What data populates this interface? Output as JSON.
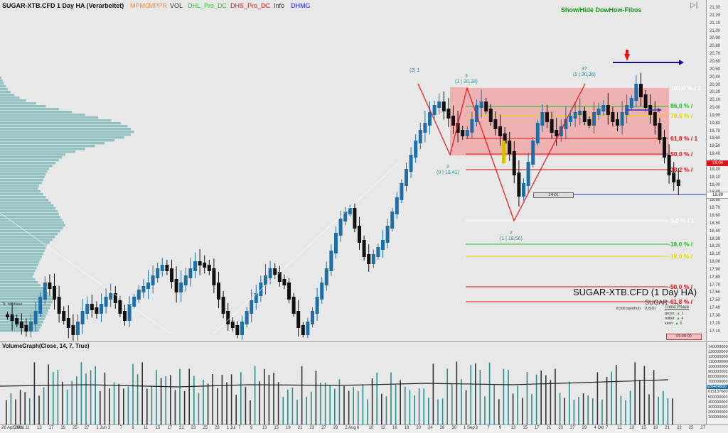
{
  "header": {
    "title": "SUGAR-XTB.CFD 1 Day HA (Verarbeitet)",
    "indicators": [
      {
        "label": "MPMG",
        "color": "#ff8c1a"
      },
      {
        "label": "MPPR",
        "color": "#ff8c1a"
      },
      {
        "label": "VOL",
        "color": "#333333"
      },
      {
        "label": "DHL_Pro_DC",
        "color": "#22cc22"
      },
      {
        "label": "DHS_Pro_DC",
        "color": "#dd1111"
      },
      {
        "label": "Info",
        "color": "#333333"
      },
      {
        "label": "DHMG",
        "color": "#1a1aff"
      }
    ],
    "show_hide_label": "Show/Hide DowHow-Fibos"
  },
  "instrument": {
    "name": "SUGAR-XTB.CFD (1 Day HA)",
    "short": "SUGAR",
    "source": "Xcfdcopenhub",
    "currency": "(USD)",
    "trend_title": "Trend Phase",
    "trend": [
      {
        "label": "gross:",
        "value": "1"
      },
      {
        "label": "mittel:",
        "value": "4"
      },
      {
        "label": "klein:",
        "value": "5"
      }
    ],
    "timer": "05:00:00",
    "box_label": "24h01",
    "left_label": "Tr. hitphase"
  },
  "price_axis": [
    "21,30",
    "21,20",
    "21,10",
    "21,00",
    "20,90",
    "20,80",
    "20,70",
    "20,60",
    "20,50",
    "20,40",
    "20,30",
    "20,20",
    "20,10",
    "20,00",
    "19,90",
    "19,80",
    "19,70",
    "19,60",
    "19,50",
    "19,40",
    "19,30",
    "19,20",
    "19,10",
    "19,00",
    "18,90",
    "18,80",
    "18,70",
    "18,60",
    "18,50",
    "18,40",
    "18,30",
    "18,20",
    "18,10",
    "18,00",
    "17,90",
    "17,80",
    "17,70",
    "17,60",
    "17,50",
    "17,40",
    "17,30",
    "17,20",
    "17,10"
  ],
  "price_badges": {
    "current": "19,04",
    "last": "18,89"
  },
  "fib_levels": [
    {
      "label": "100,0 % / 2",
      "color": "#ffffff"
    },
    {
      "label": "86,0 % /",
      "color": "#22bb22"
    },
    {
      "label": "78,6 % /",
      "color": "#e6d400"
    },
    {
      "label": "61,8 % / 1",
      "color": "#dd1111"
    },
    {
      "label": "50,0 % /",
      "color": "#dd1111"
    },
    {
      "label": "38,2 % /",
      "color": "#dd1111"
    },
    {
      "label": "0,0 % / 1",
      "color": "#ffffff"
    },
    {
      "label": "-18,0 % /",
      "color": "#22bb22"
    },
    {
      "label": "-18,0 % /",
      "color": "#e6d400"
    },
    {
      "label": "-50,0 % /",
      "color": "#dd1111"
    },
    {
      "label": "-61,8 % /",
      "color": "#dd1111"
    }
  ],
  "wave_labels": [
    {
      "text": "(2) 1"
    },
    {
      "text": "3\n(1 | 20,28)"
    },
    {
      "text": "3?\n(2 | 20,36)"
    },
    {
      "text": "2\n(0 | 19,41)"
    },
    {
      "text": "2\n(1 | 18,56)"
    }
  ],
  "volume": {
    "title": "VolumeGraph(Close, 14, 7, True)",
    "axis": [
      "1400000000",
      "1300000000",
      "1200000000",
      "1100000000",
      "1000000000",
      "900000000",
      "800000000",
      "700000000",
      "626484600",
      "615137600",
      "500000000",
      "400000000",
      "300000000",
      "200000000",
      "100000000"
    ]
  },
  "date_axis": [
    "26 Apr 2021",
    "5 Mai",
    "11",
    "13",
    "17",
    "19",
    "25",
    "27",
    "1 Jun",
    "3",
    "7",
    "9",
    "11",
    "15",
    "17",
    "21",
    "23",
    "25",
    "29",
    "1 Jul",
    "7",
    "9",
    "13",
    "15",
    "19",
    "21",
    "23",
    "27",
    "29",
    "2 Aug",
    "6",
    "10",
    "12",
    "16",
    "18",
    "20",
    "24",
    "26",
    "30",
    "1 Sep",
    "3",
    "7",
    "9",
    "13",
    "15",
    "17",
    "21",
    "23",
    "27",
    "29",
    "4 Okt",
    "7",
    "11",
    "13",
    "15",
    "19",
    "21",
    "23",
    "25",
    "27"
  ],
  "colors": {
    "up": "#1e6fa8",
    "down": "#111111",
    "vol_up": "#2a8f8f",
    "vol_down": "#333333",
    "fib_zone": "#f0a0a0"
  }
}
